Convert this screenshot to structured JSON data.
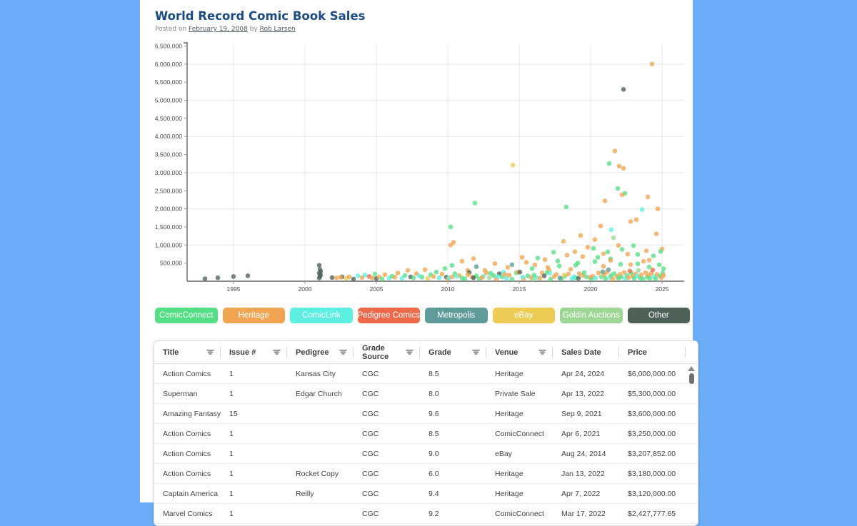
{
  "page": {
    "title": "World Record Comic Book Sales",
    "posted_prefix": "Posted on",
    "posted_date": "February 19, 2008",
    "posted_by": "by",
    "author": "Rob Larsen"
  },
  "colors": {
    "background": "#6dacf7",
    "title_text": "#1b4a85",
    "axis": "#666666",
    "gridline": "#e7e7e7"
  },
  "legend": [
    {
      "label": "ComicConnect",
      "color": "#55df84"
    },
    {
      "label": "Heritage",
      "color": "#f0a552"
    },
    {
      "label": "ComicLink",
      "color": "#5ceee0"
    },
    {
      "label": "Pedigree Comics",
      "color": "#ec6a4a"
    },
    {
      "label": "Metropolis",
      "color": "#5e9b99"
    },
    {
      "label": "eBay",
      "color": "#edcc55"
    },
    {
      "label": "Goldin Auctions",
      "color": "#9cd795"
    },
    {
      "label": "Other",
      "color": "#4e6157"
    }
  ],
  "chart_data": {
    "type": "scatter",
    "title": "",
    "xlabel": "",
    "ylabel": "",
    "xlim": [
      1991.75,
      2026.5
    ],
    "ylim": [
      0,
      6500000
    ],
    "x_ticks": [
      1995,
      2000,
      2005,
      2010,
      2015,
      2020,
      2025
    ],
    "y_ticks": [
      500000,
      1000000,
      1500000,
      2000000,
      2500000,
      3000000,
      3500000,
      4000000,
      4500000,
      5000000,
      5500000,
      6000000,
      6500000
    ],
    "grid": {
      "vertical_at_years": [
        1995,
        2000,
        2005,
        2010,
        2015,
        2020,
        2025
      ],
      "horizontal_at": [
        1000000,
        2000000,
        3000000,
        4000000,
        5000000,
        6000000
      ]
    },
    "legend_position": "bottom",
    "venues": [
      "ComicConnect",
      "Heritage",
      "ComicLink",
      "Pedigree Comics",
      "Metropolis",
      "eBay",
      "Goldin Auctions",
      "Other"
    ],
    "point_format": [
      "year",
      "price_usd",
      "venue_index"
    ],
    "points": [
      [
        1993.0,
        70000,
        7
      ],
      [
        1993.9,
        95000,
        7
      ],
      [
        1995.0,
        130000,
        7
      ],
      [
        1996.0,
        150000,
        7
      ],
      [
        2001.0,
        90000,
        7
      ],
      [
        2001.05,
        130000,
        7
      ],
      [
        2001.1,
        170000,
        7
      ],
      [
        2001.0,
        220000,
        7
      ],
      [
        2001.1,
        270000,
        7
      ],
      [
        2001.05,
        330000,
        7
      ],
      [
        2001.0,
        440000,
        7
      ],
      [
        2001.9,
        100000,
        7
      ],
      [
        2002.6,
        120000,
        7
      ],
      [
        2002.2,
        90000,
        1
      ],
      [
        2002.5,
        110000,
        1
      ],
      [
        2002.9,
        80000,
        5
      ],
      [
        2003.1,
        120000,
        1
      ],
      [
        2003.4,
        60000,
        7
      ],
      [
        2003.7,
        150000,
        2
      ],
      [
        2004.0,
        100000,
        1
      ],
      [
        2004.2,
        170000,
        2
      ],
      [
        2004.5,
        130000,
        3
      ],
      [
        2004.7,
        90000,
        1
      ],
      [
        2004.9,
        200000,
        0
      ],
      [
        2005.0,
        75000,
        7
      ],
      [
        2005.2,
        120000,
        1
      ],
      [
        2005.4,
        60000,
        0
      ],
      [
        2005.6,
        180000,
        1
      ],
      [
        2005.9,
        90000,
        2
      ],
      [
        2006.1,
        140000,
        0
      ],
      [
        2006.3,
        110000,
        1
      ],
      [
        2006.5,
        227000,
        1
      ],
      [
        2006.8,
        80000,
        2
      ],
      [
        2007.0,
        160000,
        0
      ],
      [
        2007.2,
        300000,
        1
      ],
      [
        2007.4,
        120000,
        7
      ],
      [
        2007.6,
        90000,
        0
      ],
      [
        2007.8,
        210000,
        1
      ],
      [
        2008.0,
        150000,
        2
      ],
      [
        2008.2,
        110000,
        0
      ],
      [
        2008.4,
        317000,
        1
      ],
      [
        2008.6,
        76000,
        5
      ],
      [
        2008.8,
        180000,
        0
      ],
      [
        2009.0,
        130000,
        1
      ],
      [
        2009.2,
        250000,
        0
      ],
      [
        2009.4,
        95000,
        2
      ],
      [
        2009.6,
        200000,
        1
      ],
      [
        2009.8,
        350000,
        0
      ],
      [
        2009.9,
        110000,
        7
      ],
      [
        2010.2,
        1500000,
        0
      ],
      [
        2010.2,
        1000000,
        1
      ],
      [
        2010.4,
        1075000,
        1
      ],
      [
        2010.3,
        437000,
        0
      ],
      [
        2011.0,
        550000,
        1
      ],
      [
        2011.4,
        300000,
        1
      ],
      [
        2011.9,
        2160000,
        0
      ],
      [
        2011.8,
        625000,
        1
      ],
      [
        2012.0,
        400000,
        4
      ],
      [
        2012.6,
        299000,
        1
      ],
      [
        2013.3,
        488000,
        1
      ],
      [
        2013.9,
        250000,
        2
      ],
      [
        2014.2,
        383000,
        1
      ],
      [
        2014.55,
        3207852,
        5
      ],
      [
        2014.5,
        455000,
        4
      ],
      [
        2010.0,
        60000,
        1
      ],
      [
        2010.1,
        95000,
        2
      ],
      [
        2010.5,
        210000,
        0
      ],
      [
        2010.8,
        160000,
        1
      ],
      [
        2011.2,
        70000,
        0
      ],
      [
        2011.5,
        240000,
        7
      ],
      [
        2011.7,
        115000,
        1
      ],
      [
        2012.2,
        65000,
        0
      ],
      [
        2012.5,
        140000,
        2
      ],
      [
        2012.7,
        230000,
        1
      ],
      [
        2012.9,
        95000,
        6
      ],
      [
        2013.2,
        155000,
        0
      ],
      [
        2013.4,
        60000,
        1
      ],
      [
        2013.6,
        205000,
        7
      ],
      [
        2013.8,
        120000,
        0
      ],
      [
        2014.1,
        75000,
        2
      ],
      [
        2014.3,
        165000,
        1
      ],
      [
        2014.8,
        230000,
        0
      ],
      [
        2010.3,
        120000,
        1
      ],
      [
        2011.0,
        85000,
        0
      ],
      [
        2011.4,
        180000,
        1
      ],
      [
        2012.0,
        150000,
        0
      ],
      [
        2012.4,
        100000,
        1
      ],
      [
        2013.0,
        220000,
        0
      ],
      [
        2014.0,
        185000,
        1
      ],
      [
        2014.5,
        60000,
        0
      ],
      [
        2010.6,
        135000,
        2
      ],
      [
        2011.8,
        95000,
        7
      ],
      [
        2013.5,
        130000,
        2
      ],
      [
        2014.9,
        250000,
        1
      ],
      [
        2015.2,
        658000,
        1
      ],
      [
        2015.9,
        350000,
        0
      ],
      [
        2016.1,
        453000,
        1
      ],
      [
        2016.8,
        597000,
        1
      ],
      [
        2017.1,
        300000,
        1
      ],
      [
        2017.4,
        800000,
        0
      ],
      [
        2017.8,
        420000,
        0
      ],
      [
        2018.1,
        1100000,
        1
      ],
      [
        2018.3,
        2052000,
        0
      ],
      [
        2018.6,
        330000,
        1
      ],
      [
        2018.9,
        815000,
        1
      ],
      [
        2019.1,
        500000,
        0
      ],
      [
        2019.3,
        1260000,
        1
      ],
      [
        2019.8,
        936000,
        1
      ],
      [
        2015.5,
        520000,
        1
      ],
      [
        2016.3,
        640000,
        0
      ],
      [
        2017.0,
        380000,
        1
      ],
      [
        2017.7,
        560000,
        0
      ],
      [
        2018.35,
        720000,
        1
      ],
      [
        2018.95,
        440000,
        0
      ],
      [
        2019.45,
        680000,
        1
      ],
      [
        2015.3,
        70000,
        1
      ],
      [
        2015.6,
        150000,
        0
      ],
      [
        2016.2,
        95000,
        2
      ],
      [
        2016.6,
        230000,
        1
      ],
      [
        2017.2,
        60000,
        0
      ],
      [
        2017.6,
        185000,
        1
      ],
      [
        2018.2,
        140000,
        0
      ],
      [
        2018.7,
        75000,
        2
      ],
      [
        2019.2,
        210000,
        1
      ],
      [
        2019.7,
        120000,
        0
      ],
      [
        2015.05,
        250000,
        7
      ],
      [
        2015.85,
        100000,
        1
      ],
      [
        2016.05,
        165000,
        0
      ],
      [
        2016.45,
        85000,
        1
      ],
      [
        2016.95,
        240000,
        0
      ],
      [
        2017.45,
        130000,
        1
      ],
      [
        2017.95,
        70000,
        0
      ],
      [
        2018.45,
        200000,
        1
      ],
      [
        2018.95,
        95000,
        0
      ],
      [
        2019.45,
        160000,
        1
      ],
      [
        2015.25,
        115000,
        2
      ],
      [
        2015.95,
        60000,
        6
      ],
      [
        2016.75,
        145000,
        7
      ],
      [
        2017.15,
        220000,
        2
      ],
      [
        2017.85,
        90000,
        4
      ],
      [
        2018.15,
        170000,
        5
      ],
      [
        2018.85,
        125000,
        2
      ],
      [
        2019.15,
        80000,
        7
      ],
      [
        2019.55,
        235000,
        0
      ],
      [
        2019.95,
        105000,
        1
      ],
      [
        2020.2,
        905000,
        0
      ],
      [
        2020.7,
        1525000,
        1
      ],
      [
        2020.9,
        410000,
        1
      ],
      [
        2021.0,
        2220000,
        1
      ],
      [
        2021.2,
        811000,
        0
      ],
      [
        2021.3,
        3250000,
        0
      ],
      [
        2021.45,
        1425000,
        2
      ],
      [
        2021.7,
        3600000,
        1
      ],
      [
        2021.9,
        2565000,
        0
      ],
      [
        2021.95,
        990000,
        1
      ],
      [
        2022.0,
        3180000,
        1
      ],
      [
        2022.3,
        5300000,
        7
      ],
      [
        2022.3,
        3120000,
        1
      ],
      [
        2022.4,
        2427777,
        0
      ],
      [
        2022.6,
        750000,
        1
      ],
      [
        2022.2,
        2390000,
        1
      ],
      [
        2023.0,
        980000,
        0
      ],
      [
        2023.2,
        1700000,
        1
      ],
      [
        2023.6,
        1980000,
        2
      ],
      [
        2023.9,
        840000,
        1
      ],
      [
        2024.0,
        2330000,
        1
      ],
      [
        2024.3,
        6000000,
        1
      ],
      [
        2024.6,
        1310000,
        1
      ],
      [
        2024.7,
        2000000,
        1
      ],
      [
        2025.0,
        890000,
        1
      ],
      [
        2020.3,
        1150000,
        1
      ],
      [
        2022.8,
        1650000,
        1
      ],
      [
        2021.6,
        1200000,
        6
      ],
      [
        2020.5,
        660000,
        0
      ],
      [
        2024.4,
        700000,
        0
      ],
      [
        2020.3,
        540000,
        0
      ],
      [
        2020.9,
        760000,
        1
      ],
      [
        2021.4,
        620000,
        0
      ],
      [
        2022.2,
        880000,
        0
      ],
      [
        2022.8,
        460000,
        1
      ],
      [
        2023.3,
        740000,
        0
      ],
      [
        2024.1,
        580000,
        1
      ],
      [
        2024.9,
        820000,
        0
      ],
      [
        2022.1,
        468000,
        0
      ],
      [
        2021.4,
        576000,
        1
      ],
      [
        2023.3,
        480000,
        0
      ],
      [
        2023.7,
        550000,
        1
      ],
      [
        2024.8,
        456000,
        0
      ],
      [
        2024.1,
        390000,
        0
      ],
      [
        2025.1,
        348000,
        0
      ],
      [
        2020.05,
        65000,
        0
      ],
      [
        2020.15,
        140000,
        1
      ],
      [
        2020.35,
        90000,
        2
      ],
      [
        2020.55,
        230000,
        1
      ],
      [
        2020.75,
        120000,
        0
      ],
      [
        2020.95,
        180000,
        1
      ],
      [
        2021.05,
        75000,
        0
      ],
      [
        2021.15,
        250000,
        1
      ],
      [
        2021.35,
        105000,
        2
      ],
      [
        2021.45,
        160000,
        0
      ],
      [
        2021.55,
        60000,
        1
      ],
      [
        2021.65,
        210000,
        0
      ],
      [
        2021.85,
        135000,
        1
      ],
      [
        2021.95,
        85000,
        0
      ],
      [
        2022.05,
        190000,
        1
      ],
      [
        2022.15,
        115000,
        0
      ],
      [
        2022.35,
        240000,
        1
      ],
      [
        2022.45,
        70000,
        2
      ],
      [
        2022.55,
        155000,
        0
      ],
      [
        2022.65,
        100000,
        1
      ],
      [
        2022.85,
        220000,
        0
      ],
      [
        2022.95,
        130000,
        1
      ],
      [
        2023.05,
        80000,
        0
      ],
      [
        2023.15,
        200000,
        1
      ],
      [
        2023.25,
        145000,
        2
      ],
      [
        2023.45,
        95000,
        0
      ],
      [
        2023.55,
        175000,
        1
      ],
      [
        2023.65,
        60000,
        0
      ],
      [
        2023.85,
        235000,
        1
      ],
      [
        2023.95,
        110000,
        0
      ],
      [
        2024.05,
        165000,
        1
      ],
      [
        2024.15,
        85000,
        0
      ],
      [
        2024.25,
        215000,
        1
      ],
      [
        2024.45,
        125000,
        2
      ],
      [
        2024.55,
        70000,
        0
      ],
      [
        2024.65,
        190000,
        1
      ],
      [
        2024.85,
        140000,
        0
      ],
      [
        2024.95,
        100000,
        1
      ],
      [
        2025.05,
        225000,
        0
      ],
      [
        2025.1,
        160000,
        1
      ],
      [
        2021.25,
        320000,
        4
      ],
      [
        2022.75,
        280000,
        3
      ],
      [
        2023.35,
        300000,
        6
      ],
      [
        2020.85,
        260000,
        4
      ],
      [
        2024.35,
        310000,
        3
      ]
    ]
  },
  "table": {
    "columns": [
      {
        "label": "Title",
        "filter": true
      },
      {
        "label": "Issue #",
        "filter": true
      },
      {
        "label": "Pedigree",
        "filter": true
      },
      {
        "label": "Grade Source",
        "filter": true
      },
      {
        "label": "Grade",
        "filter": true
      },
      {
        "label": "Venue",
        "filter": true
      },
      {
        "label": "Sales Date",
        "filter": false
      },
      {
        "label": "Price",
        "filter": false
      }
    ],
    "rows": [
      [
        "Action Comics",
        "1",
        "Kansas City",
        "CGC",
        "8.5",
        "Heritage",
        "Apr 24, 2024",
        "$6,000,000.00"
      ],
      [
        "Superman",
        "1",
        "Edgar Church",
        "CGC",
        "8.0",
        "Private Sale",
        "Apr 13, 2022",
        "$5,300,000.00"
      ],
      [
        "Amazing Fantasy",
        "15",
        "",
        "CGC",
        "9.6",
        "Heritage",
        "Sep 9, 2021",
        "$3,600,000.00"
      ],
      [
        "Action Comics",
        "1",
        "",
        "CGC",
        "8.5",
        "ComicConnect",
        "Apr 6, 2021",
        "$3,250,000.00"
      ],
      [
        "Action Comics",
        "1",
        "",
        "CGC",
        "9.0",
        "eBay",
        "Aug 24, 2014",
        "$3,207,852.00"
      ],
      [
        "Action Comics",
        "1",
        "Rocket Copy",
        "CGC",
        "6.0",
        "Heritage",
        "Jan 13, 2022",
        "$3,180,000.00"
      ],
      [
        "Captain America ...",
        "1",
        "Reilly",
        "CGC",
        "9.4",
        "Heritage",
        "Apr 7, 2022",
        "$3,120,000.00"
      ],
      [
        "Marvel Comics",
        "1",
        "",
        "CGC",
        "9.2",
        "ComicConnect",
        "Mar 17, 2022",
        "$2,427,777.65"
      ]
    ]
  }
}
